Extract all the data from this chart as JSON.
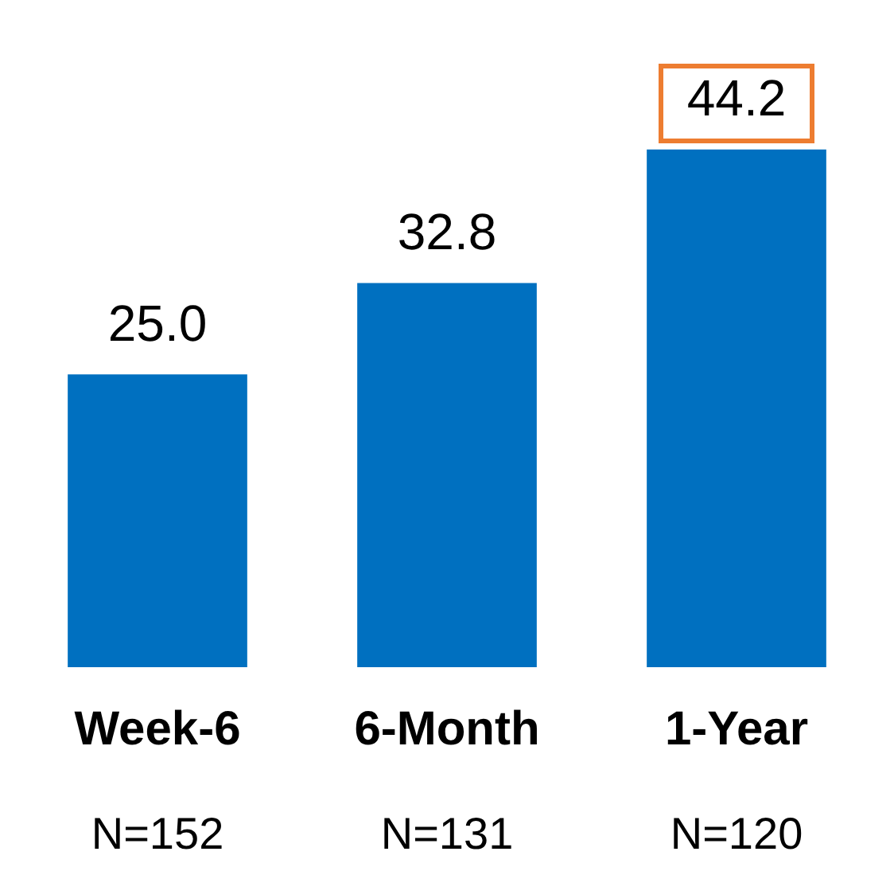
{
  "chart_data": {
    "type": "bar",
    "categories": [
      "Week-6",
      "6-Month",
      "1-Year"
    ],
    "values": [
      25.0,
      32.8,
      44.2
    ],
    "color": "#0070c0",
    "value_labels": [
      "25.0",
      "32.8",
      "44.2"
    ],
    "annotations": [
      "N=152",
      "N=131",
      "N=120"
    ],
    "grid": false,
    "legend": false
  }
}
